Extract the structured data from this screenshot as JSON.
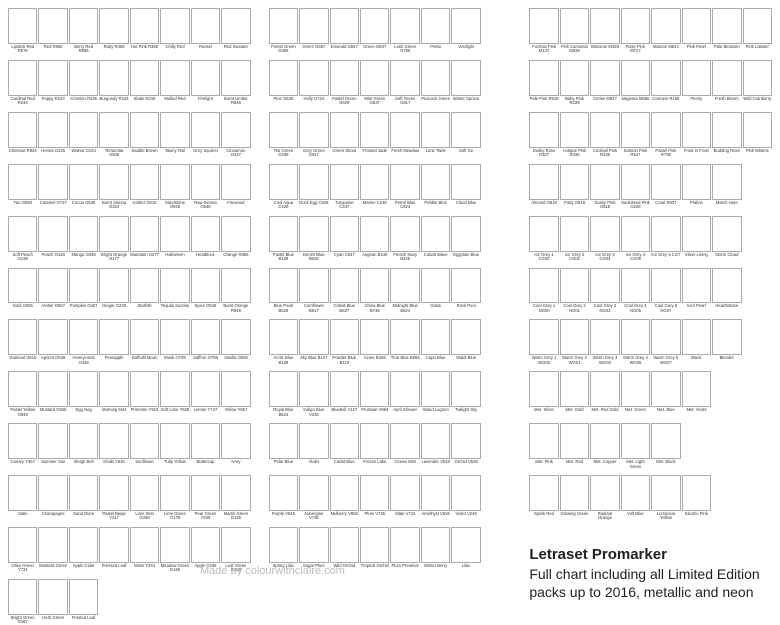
{
  "watermark": "Made by colourwithclaire.com",
  "caption_title": "Letraset Promarker",
  "caption_body": "Full chart including all Limited Edition packs up to 2016, metallic and neon",
  "columns": [
    {
      "rows": [
        [
          [
            "Lipstick Red",
            "R576"
          ],
          [
            "Red",
            "R666"
          ],
          [
            "Berry Red",
            "R665"
          ],
          [
            "Ruby",
            "R455"
          ],
          [
            "Hot Pink",
            "R365"
          ],
          [
            "Chilly Red",
            ""
          ],
          [
            "Russel",
            ""
          ],
          [
            "Red Sweater",
            ""
          ]
        ],
        [
          [
            "Cardinal Red",
            "R244"
          ],
          [
            "Poppy",
            "R243"
          ],
          [
            "Crimson",
            "R445"
          ],
          [
            "Burgundy",
            "R424"
          ],
          [
            "Shale",
            "R215"
          ],
          [
            "Mulled Red",
            ""
          ],
          [
            "Firelight",
            ""
          ],
          [
            "Burnt Umber",
            "R646"
          ]
        ],
        [
          [
            "Chestnut",
            "R934"
          ],
          [
            "Henna",
            "O225"
          ],
          [
            "Walnut",
            "O124"
          ],
          [
            "Terracotta",
            "O535"
          ],
          [
            "Saddle Brown",
            ""
          ],
          [
            "Tawny Owl",
            ""
          ],
          [
            "Grey Squirrel",
            ""
          ],
          [
            "Cinnamon",
            "O427"
          ]
        ],
        [
          [
            "Tan",
            "O528"
          ],
          [
            "Caramel",
            "O727"
          ],
          [
            "Cocoa",
            "O535"
          ],
          [
            "Burnt Sienna",
            "O324"
          ],
          [
            "Umber",
            "O615"
          ],
          [
            "Sandstone",
            "O928"
          ],
          [
            "Raw Sienna",
            "O646"
          ],
          [
            "Firewood",
            ""
          ]
        ],
        [
          [
            "Soft Peach",
            "O138"
          ],
          [
            "Peach",
            "O148"
          ],
          [
            "Mango",
            "O248"
          ],
          [
            "Bright Orange",
            "O177"
          ],
          [
            "Mandarin",
            "O277"
          ],
          [
            "Halloween",
            ""
          ],
          [
            "Heatblock",
            ""
          ],
          [
            "Orange",
            "R865"
          ]
        ],
        [
          [
            "Gold",
            "O555"
          ],
          [
            "Amber",
            "O567"
          ],
          [
            "Pumpkin",
            "O467"
          ],
          [
            "Ginger",
            "O236"
          ],
          [
            "Starfish",
            ""
          ],
          [
            "Tequila Sunrise",
            ""
          ],
          [
            "Spice",
            "O546"
          ],
          [
            "Burnt Orange",
            "R946"
          ]
        ],
        [
          [
            "Oatmeal",
            "O518"
          ],
          [
            "Apricot",
            "O538"
          ],
          [
            "Honeycomb",
            "O448"
          ],
          [
            "Pineapple",
            ""
          ],
          [
            "Daffodil Moon",
            ""
          ],
          [
            "Musk",
            "O739"
          ],
          [
            "Saffron",
            "O759"
          ],
          [
            "Vanilla",
            "O929"
          ]
        ],
        [
          [
            "Pastel Yellow",
            "O949"
          ],
          [
            "Mustard",
            "O948"
          ],
          [
            "Egg Nog",
            ""
          ],
          [
            "Morning Mist",
            ""
          ],
          [
            "Primrose",
            "Y919"
          ],
          [
            "Soft Lime",
            "Y828"
          ],
          [
            "Lemon",
            "Y747"
          ],
          [
            "Yellow",
            "Y657"
          ]
        ],
        [
          [
            "Canary",
            "Y367"
          ],
          [
            "Summer Sun",
            ""
          ],
          [
            "Sleigh Bell",
            ""
          ],
          [
            "Khaki",
            "Y616"
          ],
          [
            "Sunflower",
            ""
          ],
          [
            "Tulip Yellow",
            ""
          ],
          [
            "Buttercup",
            ""
          ],
          [
            "Ivory",
            ""
          ]
        ],
        [
          [
            "Satin",
            ""
          ],
          [
            "Champagne",
            ""
          ],
          [
            "Sand Dune",
            ""
          ],
          [
            "Pastel Beige",
            "Y217"
          ],
          [
            "Lime Zest",
            "G338"
          ],
          [
            "Lime Green",
            "G178"
          ],
          [
            "Pear Green",
            "Y635"
          ],
          [
            "Marsh Green",
            "G136"
          ]
        ],
        [
          [
            "Olive Green",
            "Y724"
          ],
          [
            "Mustard Green",
            ""
          ],
          [
            "Apple Cider",
            ""
          ],
          [
            "Pressed Leaf",
            ""
          ],
          [
            "Moss",
            "Y334"
          ],
          [
            "Meadow Green",
            "G156"
          ],
          [
            "Apple",
            "G338"
          ],
          [
            "Leaf Green",
            "G258"
          ]
        ],
        [
          [
            "Bright Green",
            "G267"
          ],
          [
            "Herb Green",
            ""
          ],
          [
            "Frosted Leaf",
            ""
          ]
        ]
      ]
    },
    {
      "rows": [
        [
          [
            "Forest Green",
            "G356"
          ],
          [
            "Green",
            "G657"
          ],
          [
            "Emerald",
            "G657"
          ],
          [
            "Green",
            "G847"
          ],
          [
            "Lush Green",
            "G756"
          ],
          [
            "Pesto",
            ""
          ],
          [
            "Verdigris",
            ""
          ],
          [
            "",
            ""
          ]
        ],
        [
          [
            "Pine",
            "G635"
          ],
          [
            "Holly",
            "G724"
          ],
          [
            "Pastel Green",
            "G829"
          ],
          [
            "Mint Green",
            "G637"
          ],
          [
            "Soft Green",
            "G817"
          ],
          [
            "Peacock Green",
            ""
          ],
          [
            "Winter Spruce",
            ""
          ],
          [
            "",
            ""
          ]
        ],
        [
          [
            "Tea Green",
            "G339"
          ],
          [
            "Grey Green",
            "G917"
          ],
          [
            "Green Shoot",
            ""
          ],
          [
            "Frosted Jade",
            ""
          ],
          [
            "Fresh Meadow",
            ""
          ],
          [
            "Lime Twist",
            ""
          ],
          [
            "Soft Ice",
            ""
          ],
          [
            "",
            ""
          ]
        ],
        [
          [
            "Cool Aqua",
            "C429"
          ],
          [
            "Duck Egg",
            "C528"
          ],
          [
            "Turquoise",
            "C247"
          ],
          [
            "Marine",
            "C246"
          ],
          [
            "Petrol Blue",
            "C824"
          ],
          [
            "Pebble Blue",
            ""
          ],
          [
            "Cloud Blue",
            ""
          ],
          [
            "",
            ""
          ]
        ],
        [
          [
            "Pastel Blue",
            "B138"
          ],
          [
            "Denim Blue",
            "B028"
          ],
          [
            "Cyan",
            "C847"
          ],
          [
            "Aegean",
            "B146"
          ],
          [
            "French Navy",
            "B445"
          ],
          [
            "Cobalt Wave",
            ""
          ],
          [
            "Egyptian Blue",
            ""
          ],
          [
            "",
            ""
          ]
        ],
        [
          [
            "Blue Pearl",
            "B528"
          ],
          [
            "Cornflower",
            "B617"
          ],
          [
            "Cobalt Blue",
            "B637"
          ],
          [
            "China Blue",
            "B736"
          ],
          [
            "Midnight Blue",
            "B624"
          ],
          [
            "Oasis",
            ""
          ],
          [
            "Rock Pool",
            ""
          ],
          [
            "",
            ""
          ]
        ],
        [
          [
            "Arctic Blue",
            "B138"
          ],
          [
            "Sky Blue",
            "B137"
          ],
          [
            "Powder Blue",
            "B119"
          ],
          [
            "Azure",
            "B346"
          ],
          [
            "True Blue",
            "B555"
          ],
          [
            "Capri Blue",
            ""
          ],
          [
            "Waldi Blue",
            ""
          ],
          [
            "",
            ""
          ]
        ],
        [
          [
            "Royal Blue",
            "B624"
          ],
          [
            "Indigo Blue",
            "V234"
          ],
          [
            "Bluebell",
            "V127"
          ],
          [
            "Prussian",
            "V964"
          ],
          [
            "April Shower",
            ""
          ],
          [
            "Island Lagoon",
            ""
          ],
          [
            "Twilight Sky",
            ""
          ],
          [
            "",
            ""
          ]
        ],
        [
          [
            "Polar Blue",
            ""
          ],
          [
            "Violet",
            ""
          ],
          [
            "Cadet Blue",
            ""
          ],
          [
            "Frozen Lake",
            ""
          ],
          [
            "Ocean Mist",
            ""
          ],
          [
            "Lavender",
            "V518"
          ],
          [
            "Orchid",
            "V528"
          ],
          [
            "",
            ""
          ]
        ],
        [
          [
            "Purple",
            "V546"
          ],
          [
            "Aubergine",
            "V735"
          ],
          [
            "Mulberry",
            "V855"
          ],
          [
            "Plum",
            "V735"
          ],
          [
            "Slate",
            "V715"
          ],
          [
            "Amethyst",
            "V626"
          ],
          [
            "Violet",
            "V245"
          ],
          [
            "",
            ""
          ]
        ],
        [
          [
            "Spring Lilac",
            ""
          ],
          [
            "Sugar Plum",
            ""
          ],
          [
            "Wild Orchid",
            ""
          ],
          [
            "Tropical Orchid",
            ""
          ],
          [
            "Plum Preserve",
            ""
          ],
          [
            "Winter Berry",
            ""
          ],
          [
            "Lilac",
            ""
          ],
          [
            "",
            ""
          ]
        ]
      ]
    },
    {
      "rows": [
        [
          [
            "Fuchsia Pink",
            "M137"
          ],
          [
            "Pink Carnation",
            "M328"
          ],
          [
            "Blossom",
            "M428"
          ],
          [
            "Rose Pink",
            "M727"
          ],
          [
            "Maroon",
            "M544"
          ],
          [
            "Pink Pearl",
            ""
          ],
          [
            "Pale Blossom",
            ""
          ],
          [
            "Pink Lobster",
            ""
          ]
        ],
        [
          [
            "Pale Pink",
            "R519"
          ],
          [
            "Baby Pink",
            "R228"
          ],
          [
            "Cerise",
            "M647"
          ],
          [
            "Magenta",
            "M865"
          ],
          [
            "Carmine",
            "R156"
          ],
          [
            "Peony",
            ""
          ],
          [
            "Fresh Bloom",
            ""
          ],
          [
            "Wild Cranberry",
            ""
          ]
        ],
        [
          [
            "Dusky Rose",
            "R327"
          ],
          [
            "Antique Pink",
            "R346"
          ],
          [
            "Cocktail Pink",
            "R438"
          ],
          [
            "Salmon Pink",
            "R547"
          ],
          [
            "Pastel Pink",
            "R738"
          ],
          [
            "Frost in Frost",
            ""
          ],
          [
            "Budding Rose",
            ""
          ],
          [
            "Pink Mittens",
            ""
          ]
        ],
        [
          [
            "Almond",
            "O819"
          ],
          [
            "Putty",
            "O618"
          ],
          [
            "Dusky Pink",
            "O518"
          ],
          [
            "Sunkissed Pink",
            "O228"
          ],
          [
            "Coral",
            "R937"
          ],
          [
            "Praline",
            ""
          ],
          [
            "March Hare",
            ""
          ],
          [
            "",
            ""
          ]
        ],
        [
          [
            "Ice Grey 1",
            "CG00"
          ],
          [
            "Ice Grey 2",
            "CG01"
          ],
          [
            "Ice Grey 3",
            "CG03"
          ],
          [
            "Ice Grey 4",
            "CG05"
          ],
          [
            "Ice Grey 5",
            "CG7"
          ],
          [
            "Silver Lining",
            ""
          ],
          [
            "Storm Cloud",
            ""
          ],
          [
            "",
            ""
          ]
        ],
        [
          [
            "Cool Grey 1",
            "NG00"
          ],
          [
            "Cool Grey 2",
            "NG01"
          ],
          [
            "Cool Grey 3",
            "NG03"
          ],
          [
            "Cool Grey 4",
            "NG05"
          ],
          [
            "Cool Grey 5",
            "NG07"
          ],
          [
            "Iced Pearl",
            ""
          ],
          [
            "Hearthstone",
            ""
          ],
          [
            "",
            ""
          ]
        ],
        [
          [
            "Warm Grey 1",
            "WG00"
          ],
          [
            "Warm Grey 2",
            "WG01"
          ],
          [
            "Warm Grey 3",
            "WG04"
          ],
          [
            "Warm Grey 4",
            "WG05"
          ],
          [
            "Warm Grey 5",
            "WG07"
          ],
          [
            "Black",
            ""
          ],
          [
            "Blender",
            ""
          ],
          [
            "",
            ""
          ]
        ],
        [
          [
            "Met. Silver",
            ""
          ],
          [
            "Met. Gold",
            ""
          ],
          [
            "Met. Red Gold",
            ""
          ],
          [
            "Met. Green",
            ""
          ],
          [
            "Met. Blue",
            ""
          ],
          [
            "Met. Violet",
            ""
          ],
          [
            "",
            ""
          ],
          [
            "",
            ""
          ]
        ],
        [
          [
            "Met. Pink",
            ""
          ],
          [
            "Met. Red",
            ""
          ],
          [
            "Met. Copper",
            ""
          ],
          [
            "Met. Light Green",
            ""
          ],
          [
            "Met. Black",
            ""
          ],
          [
            "",
            ""
          ],
          [
            "",
            ""
          ],
          [
            "",
            ""
          ]
        ],
        [
          [
            "Spark Red",
            ""
          ],
          [
            "Glowing Green",
            ""
          ],
          [
            "Radiant Orange",
            ""
          ],
          [
            "Volt Blue",
            ""
          ],
          [
            "Luminous Yellow",
            ""
          ],
          [
            "Electric Pink",
            ""
          ],
          [
            "",
            ""
          ],
          [
            "",
            ""
          ]
        ]
      ],
      "caption": true
    }
  ]
}
